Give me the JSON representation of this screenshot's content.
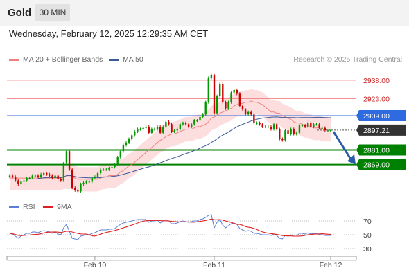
{
  "header": {
    "instrument": "Gold",
    "timeframe": "30 MIN"
  },
  "datetime": "Wednesday, February 12, 2025 12:29:35 AM CET",
  "legend": {
    "ma20": {
      "label": "MA 20 + Bollinger Bands",
      "color": "#f08080"
    },
    "ma50": {
      "label": "MA 50",
      "color": "#3b5998"
    },
    "rsi": {
      "label": "RSI",
      "color": "#5b7fd6"
    },
    "ma9": {
      "label": "9MA",
      "color": "#e02020"
    }
  },
  "credit": "Research © 2025 Trading Central",
  "chart_data": {
    "type": "candlestick",
    "price_levels": [
      {
        "value": 2938.0,
        "label": "2938.00",
        "style": "resistance-light"
      },
      {
        "value": 2923.0,
        "label": "2923.00",
        "style": "resistance-light"
      },
      {
        "value": 2909.0,
        "label": "2909.00",
        "style": "pivot"
      },
      {
        "value": 2897.21,
        "label": "2897.21",
        "style": "last-price"
      },
      {
        "value": 2881.0,
        "label": "2881.00",
        "style": "support"
      },
      {
        "value": 2869.0,
        "label": "2869.00",
        "style": "support"
      }
    ],
    "colors": {
      "up": "#009900",
      "down": "#cc0000",
      "pivot": "#2f6be0",
      "support": "#008000",
      "resistance": "#f08080",
      "last": "#333333",
      "arrow": "#2a5ca8",
      "band": "#fbd8d8"
    },
    "x_ticks": [
      "Feb 10",
      "Feb 11",
      "Feb 12"
    ],
    "x_tick_index": [
      30,
      72,
      113
    ],
    "closes": [
      2860,
      2859,
      2856,
      2853,
      2855,
      2856,
      2858,
      2858,
      2860,
      2860,
      2859,
      2861,
      2862,
      2861,
      2860,
      2858,
      2860,
      2857,
      2856,
      2870,
      2880,
      2865,
      2850,
      2848,
      2847,
      2853,
      2854,
      2855,
      2855,
      2858,
      2859,
      2862,
      2865,
      2865,
      2865,
      2866,
      2867,
      2869,
      2875,
      2880,
      2885,
      2887,
      2890,
      2893,
      2896,
      2898,
      2898,
      2899,
      2900,
      2895,
      2898,
      2898,
      2900,
      2895,
      2900,
      2904,
      2902,
      2896,
      2897,
      2898,
      2902,
      2903,
      2902,
      2900,
      2902,
      2905,
      2905,
      2908,
      2910,
      2920,
      2940,
      2942,
      2911,
      2925,
      2935,
      2920,
      2915,
      2920,
      2928,
      2930,
      2927,
      2917,
      2914,
      2910,
      2912,
      2910,
      2903,
      2903,
      2902,
      2900,
      2900,
      2900,
      2898,
      2902,
      2898,
      2890,
      2889,
      2897,
      2894,
      2898,
      2894,
      2895,
      2901,
      2901,
      2900,
      2903,
      2900,
      2902,
      2902,
      2899,
      2899,
      2897,
      2897,
      2897
    ],
    "price_range": [
      2845,
      2947
    ],
    "ma20": [
      2858,
      2858,
      2858,
      2858,
      2858,
      2858,
      2858,
      2858,
      2858,
      2858,
      2858,
      2858,
      2858,
      2858,
      2858,
      2858,
      2858,
      2858,
      2858,
      2859,
      2859,
      2859,
      2859,
      2858,
      2857,
      2857,
      2857,
      2857,
      2857,
      2857,
      2857,
      2857,
      2858,
      2859,
      2859,
      2860,
      2860,
      2860,
      2861,
      2863,
      2864,
      2866,
      2868,
      2869,
      2871,
      2873,
      2875,
      2877,
      2879,
      2881,
      2883,
      2885,
      2887,
      2889,
      2890,
      2892,
      2893,
      2894,
      2894,
      2895,
      2896,
      2897,
      2898,
      2898,
      2898,
      2899,
      2900,
      2900,
      2901,
      2902,
      2904,
      2907,
      2908,
      2909,
      2911,
      2912,
      2913,
      2914,
      2915,
      2917,
      2918,
      2919,
      2919,
      2920,
      2920,
      2921,
      2920,
      2920,
      2919,
      2918,
      2916,
      2914,
      2912,
      2912,
      2911,
      2911,
      2909,
      2908,
      2907,
      2906,
      2904,
      2903,
      2903,
      2902,
      2901,
      2901,
      2900,
      2899,
      2899,
      2899,
      2898,
      2898,
      2898,
      2898
    ],
    "bands_width": 10,
    "ma50_from_index": 10,
    "rsi": [
      52,
      51,
      48,
      45,
      48,
      50,
      52,
      52,
      54,
      54,
      53,
      55,
      56,
      55,
      54,
      52,
      54,
      51,
      50,
      60,
      65,
      55,
      45,
      44,
      43,
      48,
      49,
      50,
      50,
      52,
      53,
      55,
      57,
      57,
      57,
      58,
      58,
      59,
      62,
      65,
      67,
      68,
      69,
      70,
      71,
      72,
      72,
      72,
      72,
      68,
      70,
      70,
      71,
      67,
      70,
      72,
      70,
      66,
      66,
      67,
      69,
      70,
      69,
      68,
      69,
      70,
      70,
      72,
      73,
      75,
      78,
      79,
      60,
      68,
      72,
      64,
      60,
      63,
      66,
      67,
      65,
      59,
      57,
      55,
      56,
      55,
      52,
      52,
      51,
      50,
      50,
      50,
      49,
      51,
      49,
      45,
      44,
      49,
      48,
      50,
      48,
      48,
      52,
      52,
      51,
      53,
      51,
      52,
      52,
      50,
      50,
      49,
      49,
      49
    ],
    "rsi_range": [
      20,
      80
    ],
    "rsi_ticks": [
      70,
      50,
      30
    ]
  }
}
